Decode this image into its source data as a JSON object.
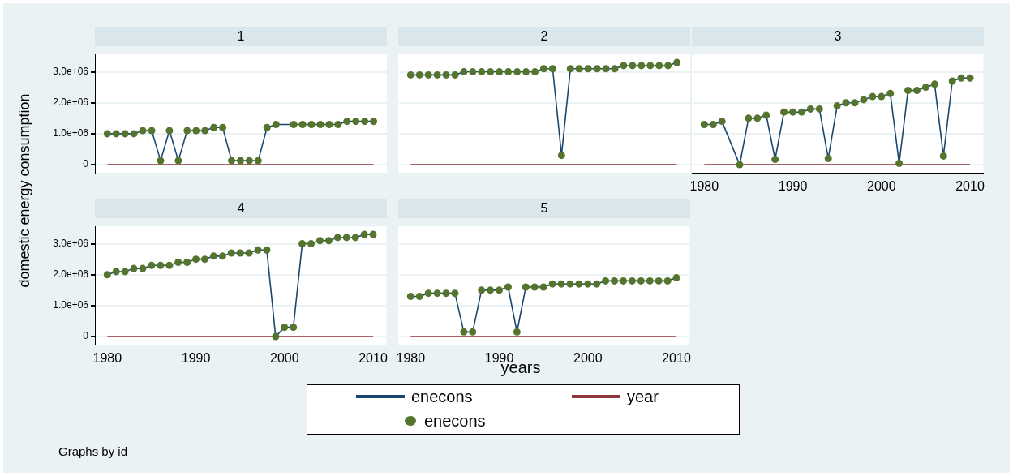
{
  "chart_data": [
    {
      "type": "line",
      "title": "1",
      "ylabel": "domestic energy consumption",
      "annotations": [
        "Graphs by id"
      ],
      "legend": "bottom",
      "grid": "y",
      "tick_labels": "y",
      "x": [
        1980,
        1981,
        1982,
        1983,
        1984,
        1985,
        1986,
        1987,
        1988,
        1989,
        1990,
        1991,
        1992,
        1993,
        1994,
        1995,
        1996,
        1997,
        1998,
        1999,
        2000,
        2001,
        2002,
        2003,
        2004,
        2005,
        2006,
        2007,
        2008,
        2009,
        2010
      ],
      "xlim": [
        1978.6,
        2011.5
      ],
      "xticks": [
        1980,
        1990,
        2000,
        2010
      ],
      "ylim": [
        -260000,
        3560000
      ],
      "yticks": [
        {
          "value": 0,
          "label": "0"
        },
        {
          "value": 1000000,
          "label": "1.0e+06"
        },
        {
          "value": 2000000,
          "label": "2.0e+06"
        },
        {
          "value": 3000000,
          "label": "3.0e+06"
        }
      ],
      "series": [
        {
          "name": "enecons",
          "marker": "none",
          "color": "#1a476f",
          "values": [
            1000000,
            1000000,
            1000000,
            1000000,
            1100000,
            1100000,
            130000,
            1100000,
            130000,
            1100000,
            1100000,
            1100000,
            1200000,
            1200000,
            130000,
            130000,
            130000,
            130000,
            1200000,
            1300000,
            null,
            1300000,
            1300000,
            1300000,
            1300000,
            1300000,
            1300000,
            1400000,
            1400000,
            1400000,
            1400000
          ]
        },
        {
          "name": "year",
          "marker": "none",
          "color": "#90353b",
          "values": [
            1980,
            1981,
            1982,
            1983,
            1984,
            1985,
            1986,
            1987,
            1988,
            1989,
            1990,
            1991,
            1992,
            1993,
            1994,
            1995,
            1996,
            1997,
            1998,
            1999,
            2000,
            2001,
            2002,
            2003,
            2004,
            2005,
            2006,
            2007,
            2008,
            2009,
            2010
          ]
        },
        {
          "name": "enecons",
          "type": "scatter",
          "marker": "circle",
          "color": "#55752f",
          "values": [
            1000000,
            1000000,
            1000000,
            1000000,
            1100000,
            1100000,
            130000,
            1100000,
            130000,
            1100000,
            1100000,
            1100000,
            1200000,
            1200000,
            130000,
            130000,
            130000,
            130000,
            1200000,
            1300000,
            null,
            1300000,
            1300000,
            1300000,
            1300000,
            1300000,
            1300000,
            1400000,
            1400000,
            1400000,
            1400000
          ]
        }
      ]
    },
    {
      "type": "line",
      "title": "2",
      "grid": "y",
      "tick_labels": false,
      "x": [
        1980,
        1981,
        1982,
        1983,
        1984,
        1985,
        1986,
        1987,
        1988,
        1989,
        1990,
        1991,
        1992,
        1993,
        1994,
        1995,
        1996,
        1997,
        1998,
        1999,
        2000,
        2001,
        2002,
        2003,
        2004,
        2005,
        2006,
        2007,
        2008,
        2009,
        2010
      ],
      "xlim": [
        1978.6,
        2011.5
      ],
      "xticks": [
        1980,
        1990,
        2000,
        2010
      ],
      "ylim": [
        -260000,
        3560000
      ],
      "yticks": [
        0,
        1000000,
        2000000,
        3000000
      ],
      "series": [
        {
          "marker": "none",
          "color": "#1a476f",
          "values": [
            2900000,
            2900000,
            2900000,
            2900000,
            2900000,
            2900000,
            3000000,
            3000000,
            3000000,
            3000000,
            3000000,
            3000000,
            3000000,
            3000000,
            3000000,
            3100000,
            3100000,
            300000,
            3100000,
            3100000,
            3100000,
            3100000,
            3100000,
            3100000,
            3200000,
            3200000,
            3200000,
            3200000,
            3200000,
            3200000,
            3300000
          ]
        },
        {
          "marker": "none",
          "color": "#90353b",
          "values": [
            1980,
            1981,
            1982,
            1983,
            1984,
            1985,
            1986,
            1987,
            1988,
            1989,
            1990,
            1991,
            1992,
            1993,
            1994,
            1995,
            1996,
            1997,
            1998,
            1999,
            2000,
            2001,
            2002,
            2003,
            2004,
            2005,
            2006,
            2007,
            2008,
            2009,
            2010
          ]
        },
        {
          "type": "scatter",
          "marker": "circle",
          "color": "#55752f",
          "values": [
            2900000,
            2900000,
            2900000,
            2900000,
            2900000,
            2900000,
            3000000,
            3000000,
            3000000,
            3000000,
            3000000,
            3000000,
            3000000,
            3000000,
            3000000,
            3100000,
            3100000,
            300000,
            3100000,
            3100000,
            3100000,
            3100000,
            3100000,
            3100000,
            3200000,
            3200000,
            3200000,
            3200000,
            3200000,
            3200000,
            3300000
          ]
        }
      ]
    },
    {
      "type": "line",
      "title": "3",
      "grid": "y",
      "tick_labels": "x",
      "x": [
        1980,
        1981,
        1982,
        1983,
        1984,
        1985,
        1986,
        1987,
        1988,
        1989,
        1990,
        1991,
        1992,
        1993,
        1994,
        1995,
        1996,
        1997,
        1998,
        1999,
        2000,
        2001,
        2002,
        2003,
        2004,
        2005,
        2006,
        2007,
        2008,
        2009,
        2010
      ],
      "xlim": [
        1978.6,
        2011.5
      ],
      "xticks": [
        1980,
        1990,
        2000,
        2010
      ],
      "ylim": [
        -260000,
        3560000
      ],
      "yticks": [
        0,
        1000000,
        2000000,
        3000000
      ],
      "series": [
        {
          "marker": "none",
          "color": "#1a476f",
          "values": [
            1300000,
            1300000,
            1400000,
            null,
            0,
            1500000,
            1500000,
            1600000,
            170000,
            1700000,
            1700000,
            1700000,
            1800000,
            1800000,
            200000,
            1900000,
            2000000,
            2000000,
            2100000,
            2200000,
            2200000,
            2300000,
            40000,
            2400000,
            2400000,
            2500000,
            2600000,
            280000,
            2700000,
            2800000,
            2800000
          ]
        },
        {
          "marker": "none",
          "color": "#90353b",
          "values": [
            1980,
            1981,
            1982,
            1983,
            1984,
            1985,
            1986,
            1987,
            1988,
            1989,
            1990,
            1991,
            1992,
            1993,
            1994,
            1995,
            1996,
            1997,
            1998,
            1999,
            2000,
            2001,
            2002,
            2003,
            2004,
            2005,
            2006,
            2007,
            2008,
            2009,
            2010
          ]
        },
        {
          "type": "scatter",
          "marker": "circle",
          "color": "#55752f",
          "values": [
            1300000,
            1300000,
            1400000,
            null,
            0,
            1500000,
            1500000,
            1600000,
            170000,
            1700000,
            1700000,
            1700000,
            1800000,
            1800000,
            200000,
            1900000,
            2000000,
            2000000,
            2100000,
            2200000,
            2200000,
            2300000,
            40000,
            2400000,
            2400000,
            2500000,
            2600000,
            280000,
            2700000,
            2800000,
            2800000
          ]
        }
      ]
    },
    {
      "type": "line",
      "title": "4",
      "grid": "y",
      "x": [
        1980,
        1981,
        1982,
        1983,
        1984,
        1985,
        1986,
        1987,
        1988,
        1989,
        1990,
        1991,
        1992,
        1993,
        1994,
        1995,
        1996,
        1997,
        1998,
        1999,
        2000,
        2001,
        2002,
        2003,
        2004,
        2005,
        2006,
        2007,
        2008,
        2009,
        2010
      ],
      "xlim": [
        1978.6,
        2011.5
      ],
      "xticks": [
        1980,
        1990,
        2000,
        2010
      ],
      "ylim": [
        -260000,
        3560000
      ],
      "yticks": [
        {
          "value": 0,
          "label": "0"
        },
        {
          "value": 1000000,
          "label": "1.0e+06"
        },
        {
          "value": 2000000,
          "label": "2.0e+06"
        },
        {
          "value": 3000000,
          "label": "3.0e+06"
        }
      ],
      "series": [
        {
          "marker": "none",
          "color": "#1a476f",
          "values": [
            2000000,
            2100000,
            2100000,
            2200000,
            2200000,
            2300000,
            2300000,
            2300000,
            2400000,
            2400000,
            2500000,
            2500000,
            2600000,
            2600000,
            2700000,
            2700000,
            2700000,
            2800000,
            2800000,
            0,
            300000,
            300000,
            3000000,
            3000000,
            3100000,
            3100000,
            3200000,
            3200000,
            3200000,
            3300000,
            3300000
          ]
        },
        {
          "marker": "none",
          "color": "#90353b",
          "values": [
            1980,
            1981,
            1982,
            1983,
            1984,
            1985,
            1986,
            1987,
            1988,
            1989,
            1990,
            1991,
            1992,
            1993,
            1994,
            1995,
            1996,
            1997,
            1998,
            1999,
            2000,
            2001,
            2002,
            2003,
            2004,
            2005,
            2006,
            2007,
            2008,
            2009,
            2010
          ]
        },
        {
          "type": "scatter",
          "marker": "circle",
          "color": "#55752f",
          "values": [
            2000000,
            2100000,
            2100000,
            2200000,
            2200000,
            2300000,
            2300000,
            2300000,
            2400000,
            2400000,
            2500000,
            2500000,
            2600000,
            2600000,
            2700000,
            2700000,
            2700000,
            2800000,
            2800000,
            0,
            300000,
            300000,
            3000000,
            3000000,
            3100000,
            3100000,
            3200000,
            3200000,
            3200000,
            3300000,
            3300000
          ]
        }
      ]
    },
    {
      "type": "line",
      "title": "5",
      "xlabel": "years",
      "grid": "y",
      "tick_labels": "x",
      "x": [
        1980,
        1981,
        1982,
        1983,
        1984,
        1985,
        1986,
        1987,
        1988,
        1989,
        1990,
        1991,
        1992,
        1993,
        1994,
        1995,
        1996,
        1997,
        1998,
        1999,
        2000,
        2001,
        2002,
        2003,
        2004,
        2005,
        2006,
        2007,
        2008,
        2009,
        2010
      ],
      "xlim": [
        1978.6,
        2011.5
      ],
      "xticks": [
        1980,
        1990,
        2000,
        2010
      ],
      "ylim": [
        -260000,
        3560000
      ],
      "yticks": [
        0,
        1000000,
        2000000,
        3000000
      ],
      "series": [
        {
          "marker": "none",
          "color": "#1a476f",
          "values": [
            1300000,
            1300000,
            1400000,
            1400000,
            1400000,
            1400000,
            150000,
            150000,
            1500000,
            1500000,
            1500000,
            1600000,
            150000,
            1600000,
            1600000,
            1600000,
            1700000,
            1700000,
            1700000,
            1700000,
            1700000,
            1700000,
            1800000,
            1800000,
            1800000,
            1800000,
            1800000,
            1800000,
            1800000,
            1800000,
            1900000
          ]
        },
        {
          "marker": "none",
          "color": "#90353b",
          "values": [
            1980,
            1981,
            1982,
            1983,
            1984,
            1985,
            1986,
            1987,
            1988,
            1989,
            1990,
            1991,
            1992,
            1993,
            1994,
            1995,
            1996,
            1997,
            1998,
            1999,
            2000,
            2001,
            2002,
            2003,
            2004,
            2005,
            2006,
            2007,
            2008,
            2009,
            2010
          ]
        },
        {
          "type": "scatter",
          "marker": "circle",
          "color": "#55752f",
          "values": [
            1300000,
            1300000,
            1400000,
            1400000,
            1400000,
            1400000,
            150000,
            150000,
            1500000,
            1500000,
            1500000,
            1600000,
            150000,
            1600000,
            1600000,
            1600000,
            1700000,
            1700000,
            1700000,
            1700000,
            1700000,
            1700000,
            1800000,
            1800000,
            1800000,
            1800000,
            1800000,
            1800000,
            1800000,
            1800000,
            1900000
          ]
        }
      ]
    }
  ]
}
